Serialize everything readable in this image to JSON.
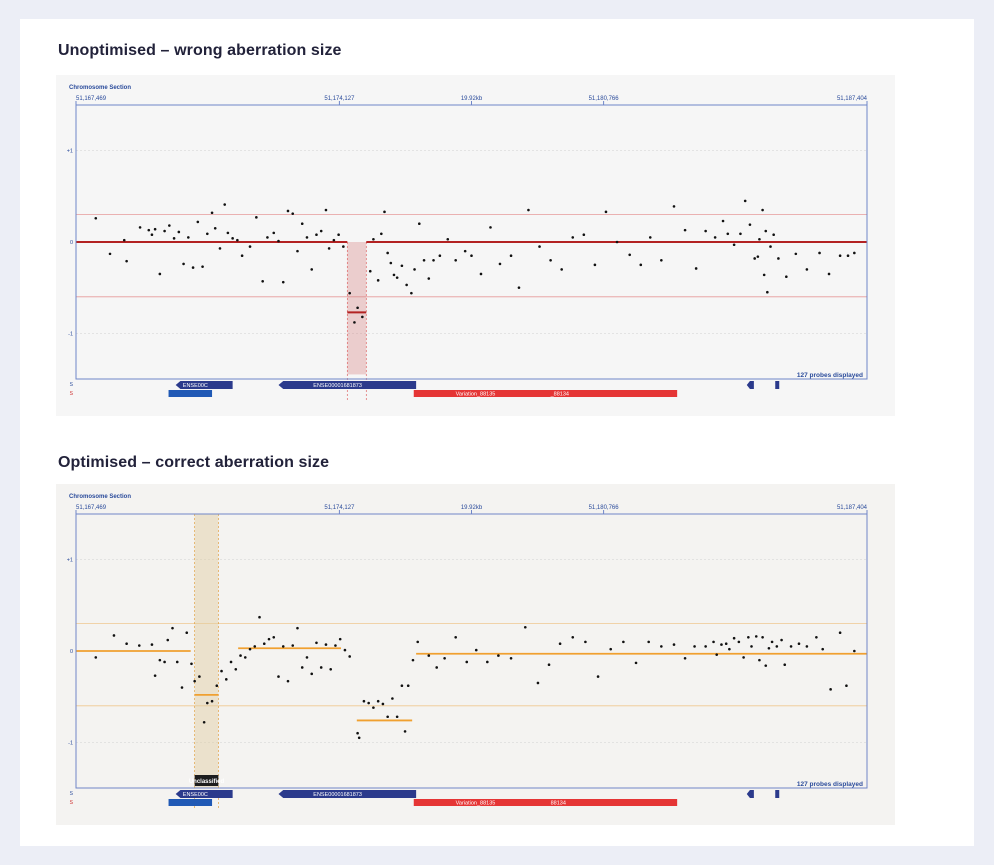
{
  "chart_data": [
    {
      "type": "scatter",
      "title": "Unoptimised – wrong aberration size",
      "section_label": "Chromosome Section",
      "x_ticks": [
        "51,167,469",
        "51,174,127",
        "19.92kb",
        "51,180,766",
        "51,187,404"
      ],
      "y_ticks": [
        "+1",
        "0",
        "-1"
      ],
      "ylim": [
        -1.5,
        1.5
      ],
      "probes_label": "127 probes displayed",
      "gene_labels": [
        "ENSE00C",
        "ENSE00001681873"
      ],
      "variation_labels": [
        "Variation_88135",
        "_88134"
      ],
      "region_label": "",
      "segments": [
        {
          "x0": 0.0,
          "x1": 0.343,
          "y": 0.0
        },
        {
          "x0": 0.343,
          "x1": 0.367,
          "y": -0.77
        },
        {
          "x0": 0.367,
          "x1": 1.0,
          "y": 0.0
        }
      ],
      "points": [
        [
          0.025,
          0.26
        ],
        [
          0.043,
          -0.13
        ],
        [
          0.061,
          0.02
        ],
        [
          0.064,
          -0.21
        ],
        [
          0.081,
          0.16
        ],
        [
          0.092,
          0.13
        ],
        [
          0.096,
          0.08
        ],
        [
          0.1,
          0.14
        ],
        [
          0.106,
          -0.35
        ],
        [
          0.112,
          0.12
        ],
        [
          0.118,
          0.18
        ],
        [
          0.124,
          0.04
        ],
        [
          0.13,
          0.11
        ],
        [
          0.136,
          -0.24
        ],
        [
          0.142,
          0.05
        ],
        [
          0.148,
          -0.28
        ],
        [
          0.154,
          0.22
        ],
        [
          0.16,
          -0.27
        ],
        [
          0.166,
          0.09
        ],
        [
          0.172,
          0.32
        ],
        [
          0.176,
          0.15
        ],
        [
          0.182,
          -0.07
        ],
        [
          0.188,
          0.41
        ],
        [
          0.192,
          0.1
        ],
        [
          0.198,
          0.04
        ],
        [
          0.204,
          0.02
        ],
        [
          0.21,
          -0.15
        ],
        [
          0.22,
          -0.05
        ],
        [
          0.228,
          0.27
        ],
        [
          0.236,
          -0.43
        ],
        [
          0.242,
          0.05
        ],
        [
          0.25,
          0.1
        ],
        [
          0.256,
          0.01
        ],
        [
          0.262,
          -0.44
        ],
        [
          0.268,
          0.34
        ],
        [
          0.274,
          0.31
        ],
        [
          0.28,
          -0.1
        ],
        [
          0.286,
          0.2
        ],
        [
          0.292,
          0.05
        ],
        [
          0.298,
          -0.3
        ],
        [
          0.304,
          0.08
        ],
        [
          0.31,
          0.12
        ],
        [
          0.316,
          0.35
        ],
        [
          0.32,
          -0.07
        ],
        [
          0.326,
          0.02
        ],
        [
          0.332,
          0.08
        ],
        [
          0.338,
          -0.05
        ],
        [
          0.346,
          -0.56
        ],
        [
          0.352,
          -0.88
        ],
        [
          0.356,
          -0.72
        ],
        [
          0.362,
          -0.82
        ],
        [
          0.372,
          -0.32
        ],
        [
          0.376,
          0.03
        ],
        [
          0.382,
          -0.42
        ],
        [
          0.386,
          0.09
        ],
        [
          0.39,
          0.33
        ],
        [
          0.394,
          -0.12
        ],
        [
          0.398,
          -0.23
        ],
        [
          0.402,
          -0.36
        ],
        [
          0.406,
          -0.39
        ],
        [
          0.412,
          -0.26
        ],
        [
          0.418,
          -0.47
        ],
        [
          0.424,
          -0.56
        ],
        [
          0.428,
          -0.3
        ],
        [
          0.434,
          0.2
        ],
        [
          0.44,
          -0.2
        ],
        [
          0.446,
          -0.4
        ],
        [
          0.452,
          -0.2
        ],
        [
          0.46,
          -0.15
        ],
        [
          0.47,
          0.03
        ],
        [
          0.48,
          -0.2
        ],
        [
          0.492,
          -0.1
        ],
        [
          0.5,
          -0.15
        ],
        [
          0.512,
          -0.35
        ],
        [
          0.524,
          0.16
        ],
        [
          0.536,
          -0.24
        ],
        [
          0.55,
          -0.15
        ],
        [
          0.56,
          -0.5
        ],
        [
          0.572,
          0.35
        ],
        [
          0.586,
          -0.05
        ],
        [
          0.6,
          -0.2
        ],
        [
          0.614,
          -0.3
        ],
        [
          0.628,
          0.05
        ],
        [
          0.642,
          0.08
        ],
        [
          0.656,
          -0.25
        ],
        [
          0.67,
          0.33
        ],
        [
          0.684,
          0.0
        ],
        [
          0.7,
          -0.14
        ],
        [
          0.714,
          -0.25
        ],
        [
          0.726,
          0.05
        ],
        [
          0.74,
          -0.2
        ],
        [
          0.756,
          0.39
        ],
        [
          0.77,
          0.13
        ],
        [
          0.784,
          -0.29
        ],
        [
          0.796,
          0.12
        ],
        [
          0.808,
          0.05
        ],
        [
          0.818,
          0.23
        ],
        [
          0.824,
          0.09
        ],
        [
          0.832,
          -0.03
        ],
        [
          0.84,
          0.09
        ],
        [
          0.846,
          0.45
        ],
        [
          0.852,
          0.19
        ],
        [
          0.858,
          -0.18
        ],
        [
          0.862,
          -0.16
        ],
        [
          0.864,
          0.03
        ],
        [
          0.868,
          0.35
        ],
        [
          0.87,
          -0.36
        ],
        [
          0.872,
          0.12
        ],
        [
          0.874,
          -0.55
        ],
        [
          0.878,
          -0.05
        ],
        [
          0.882,
          0.08
        ],
        [
          0.888,
          -0.18
        ],
        [
          0.898,
          -0.38
        ],
        [
          0.91,
          -0.13
        ],
        [
          0.924,
          -0.3
        ],
        [
          0.94,
          -0.12
        ],
        [
          0.952,
          -0.35
        ],
        [
          0.966,
          -0.15
        ],
        [
          0.976,
          -0.15
        ],
        [
          0.984,
          -0.12
        ]
      ]
    },
    {
      "type": "scatter",
      "title": "Optimised – correct aberration size",
      "section_label": "Chromosome Section",
      "x_ticks": [
        "51,167,469",
        "51,174,127",
        "19.92kb",
        "51,180,766",
        "51,187,404"
      ],
      "y_ticks": [
        "+1",
        "0",
        "-1"
      ],
      "ylim": [
        -1.5,
        1.5
      ],
      "probes_label": "127 probes displayed",
      "gene_labels": [
        "ENSE00C",
        "ENSE00001681873"
      ],
      "variation_labels": [
        "Variation_88135",
        "88134"
      ],
      "region_label": "Unclassified",
      "segments": [
        {
          "x0": 0.0,
          "x1": 0.145,
          "y": 0.0
        },
        {
          "x0": 0.15,
          "x1": 0.18,
          "y": -0.48
        },
        {
          "x0": 0.205,
          "x1": 0.335,
          "y": 0.03
        },
        {
          "x0": 0.355,
          "x1": 0.425,
          "y": -0.76
        },
        {
          "x0": 0.43,
          "x1": 1.0,
          "y": -0.03
        }
      ],
      "points": [
        [
          0.025,
          -0.07
        ],
        [
          0.048,
          0.17
        ],
        [
          0.064,
          0.08
        ],
        [
          0.08,
          0.06
        ],
        [
          0.096,
          0.07
        ],
        [
          0.1,
          -0.27
        ],
        [
          0.106,
          -0.1
        ],
        [
          0.112,
          -0.12
        ],
        [
          0.116,
          0.12
        ],
        [
          0.122,
          0.25
        ],
        [
          0.128,
          -0.12
        ],
        [
          0.134,
          -0.4
        ],
        [
          0.14,
          0.2
        ],
        [
          0.146,
          -0.14
        ],
        [
          0.15,
          -0.33
        ],
        [
          0.156,
          -0.28
        ],
        [
          0.162,
          -0.78
        ],
        [
          0.166,
          -0.57
        ],
        [
          0.172,
          -0.55
        ],
        [
          0.178,
          -0.38
        ],
        [
          0.184,
          -0.22
        ],
        [
          0.19,
          -0.31
        ],
        [
          0.196,
          -0.12
        ],
        [
          0.202,
          -0.2
        ],
        [
          0.208,
          -0.05
        ],
        [
          0.214,
          -0.07
        ],
        [
          0.22,
          0.02
        ],
        [
          0.226,
          0.05
        ],
        [
          0.232,
          0.37
        ],
        [
          0.238,
          0.08
        ],
        [
          0.244,
          0.13
        ],
        [
          0.25,
          0.15
        ],
        [
          0.256,
          -0.28
        ],
        [
          0.262,
          0.05
        ],
        [
          0.268,
          -0.33
        ],
        [
          0.274,
          0.06
        ],
        [
          0.28,
          0.25
        ],
        [
          0.286,
          -0.18
        ],
        [
          0.292,
          -0.07
        ],
        [
          0.298,
          -0.25
        ],
        [
          0.304,
          0.09
        ],
        [
          0.31,
          -0.18
        ],
        [
          0.316,
          0.07
        ],
        [
          0.322,
          -0.2
        ],
        [
          0.328,
          0.06
        ],
        [
          0.334,
          0.13
        ],
        [
          0.34,
          0.01
        ],
        [
          0.346,
          -0.06
        ],
        [
          0.356,
          -0.9
        ],
        [
          0.358,
          -0.95
        ],
        [
          0.364,
          -0.55
        ],
        [
          0.37,
          -0.57
        ],
        [
          0.376,
          -0.62
        ],
        [
          0.382,
          -0.55
        ],
        [
          0.388,
          -0.58
        ],
        [
          0.394,
          -0.72
        ],
        [
          0.4,
          -0.52
        ],
        [
          0.406,
          -0.72
        ],
        [
          0.412,
          -0.38
        ],
        [
          0.416,
          -0.88
        ],
        [
          0.42,
          -0.38
        ],
        [
          0.426,
          -0.1
        ],
        [
          0.432,
          0.1
        ],
        [
          0.446,
          -0.05
        ],
        [
          0.456,
          -0.18
        ],
        [
          0.466,
          -0.08
        ],
        [
          0.48,
          0.15
        ],
        [
          0.494,
          -0.12
        ],
        [
          0.506,
          0.01
        ],
        [
          0.52,
          -0.12
        ],
        [
          0.534,
          -0.05
        ],
        [
          0.55,
          -0.08
        ],
        [
          0.568,
          0.26
        ],
        [
          0.584,
          -0.35
        ],
        [
          0.598,
          -0.15
        ],
        [
          0.612,
          0.08
        ],
        [
          0.628,
          0.15
        ],
        [
          0.644,
          0.1
        ],
        [
          0.66,
          -0.28
        ],
        [
          0.676,
          0.02
        ],
        [
          0.692,
          0.1
        ],
        [
          0.708,
          -0.13
        ],
        [
          0.724,
          0.1
        ],
        [
          0.74,
          0.05
        ],
        [
          0.756,
          0.07
        ],
        [
          0.77,
          -0.08
        ],
        [
          0.782,
          0.05
        ],
        [
          0.796,
          0.05
        ],
        [
          0.806,
          0.1
        ],
        [
          0.81,
          -0.04
        ],
        [
          0.816,
          0.07
        ],
        [
          0.822,
          0.08
        ],
        [
          0.826,
          0.02
        ],
        [
          0.832,
          0.14
        ],
        [
          0.838,
          0.1
        ],
        [
          0.844,
          -0.07
        ],
        [
          0.85,
          0.15
        ],
        [
          0.854,
          0.05
        ],
        [
          0.86,
          0.16
        ],
        [
          0.864,
          -0.1
        ],
        [
          0.868,
          0.15
        ],
        [
          0.872,
          -0.16
        ],
        [
          0.876,
          0.03
        ],
        [
          0.88,
          0.1
        ],
        [
          0.886,
          0.05
        ],
        [
          0.892,
          0.12
        ],
        [
          0.896,
          -0.15
        ],
        [
          0.904,
          0.05
        ],
        [
          0.914,
          0.08
        ],
        [
          0.924,
          0.05
        ],
        [
          0.936,
          0.15
        ],
        [
          0.944,
          0.02
        ],
        [
          0.954,
          -0.42
        ],
        [
          0.966,
          0.2
        ],
        [
          0.974,
          -0.38
        ],
        [
          0.984,
          0.0
        ]
      ]
    }
  ]
}
